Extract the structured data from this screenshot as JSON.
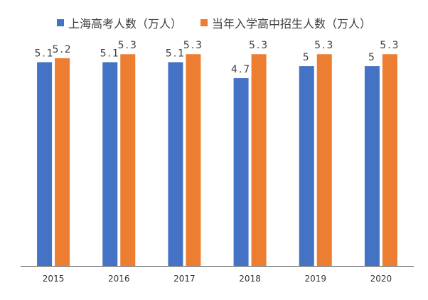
{
  "chart_data": {
    "type": "bar",
    "categories": [
      "2015",
      "2016",
      "2017",
      "2018",
      "2019",
      "2020"
    ],
    "series": [
      {
        "name": "上海高考人数（万人）",
        "values": [
          5.1,
          5.1,
          5.1,
          4.7,
          5,
          5
        ],
        "labels": [
          "5.1",
          "5.1",
          "5.1",
          "4.7",
          "5",
          "5"
        ],
        "color": "#4472C4"
      },
      {
        "name": "当年入学高中招生人数（万人）",
        "values": [
          5.2,
          5.3,
          5.3,
          5.3,
          5.3,
          5.3
        ],
        "labels": [
          "5.2",
          "5.3",
          "5.3",
          "5.3",
          "5.3",
          "5.3"
        ],
        "color": "#ED7D31"
      }
    ],
    "ylim": [
      0,
      5.5
    ],
    "grid": false,
    "legend": "top-center",
    "title": "",
    "xlabel": "",
    "ylabel": ""
  }
}
